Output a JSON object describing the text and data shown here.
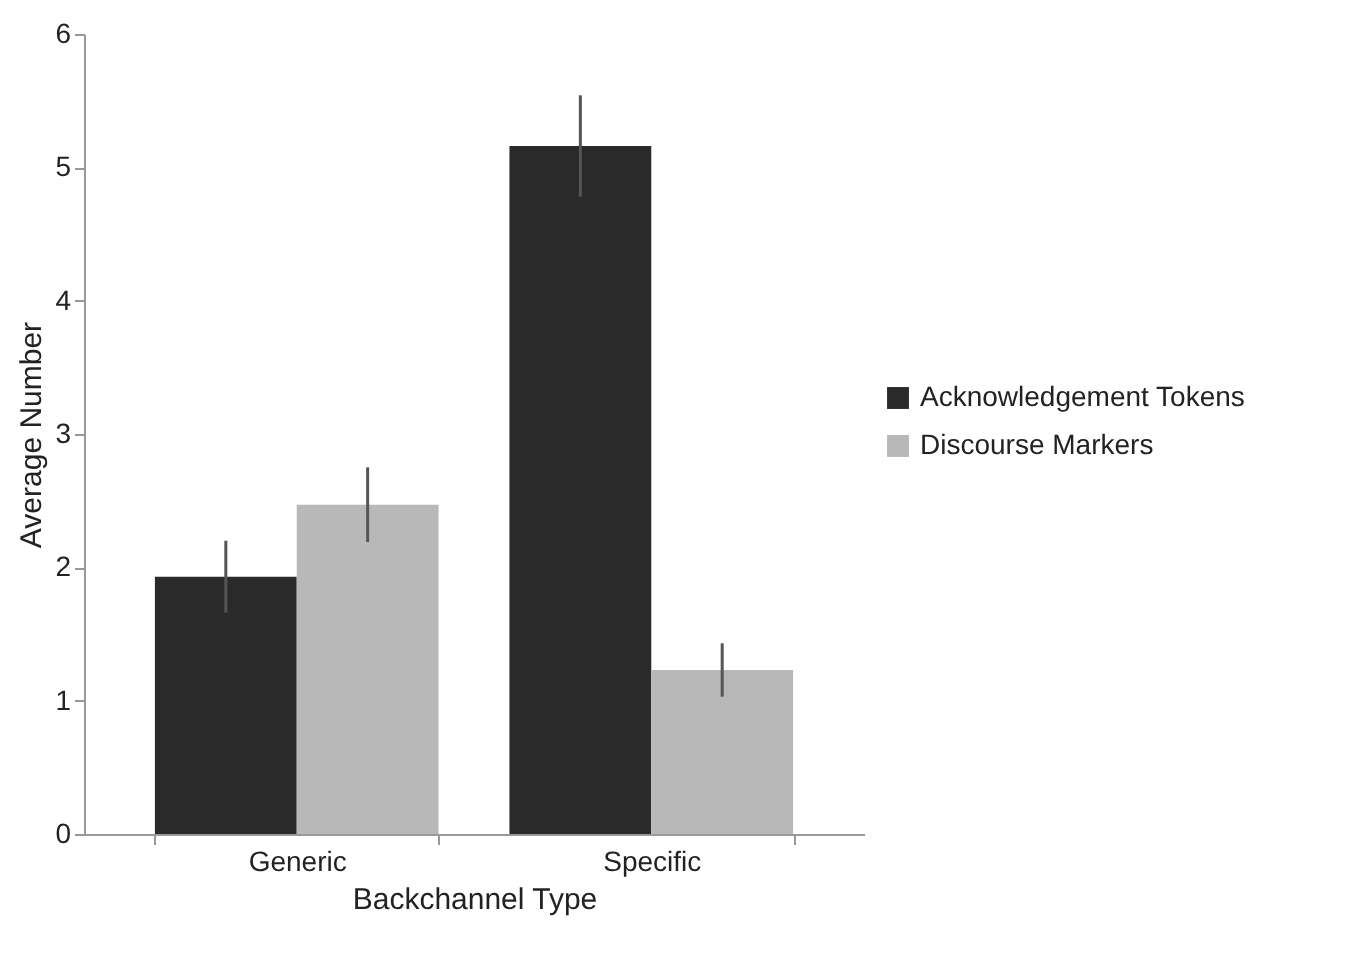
{
  "chart_data": {
    "type": "bar",
    "xlabel": "Backchannel Type",
    "ylabel": "Average Number",
    "categories": [
      "Generic",
      "Specific"
    ],
    "series": [
      {
        "name": "Acknowledgement Tokens",
        "color": "#2a2a2a",
        "values": [
          1.93,
          5.16
        ],
        "errors": [
          0.27,
          0.38
        ]
      },
      {
        "name": "Discourse Markers",
        "color": "#b8b8b8",
        "values": [
          2.47,
          1.23
        ],
        "errors": [
          0.28,
          0.2
        ]
      }
    ],
    "ylim": [
      0,
      6
    ],
    "yticks": [
      0,
      1,
      2,
      3,
      4,
      5,
      6
    ],
    "grid": false,
    "legend": "right"
  }
}
